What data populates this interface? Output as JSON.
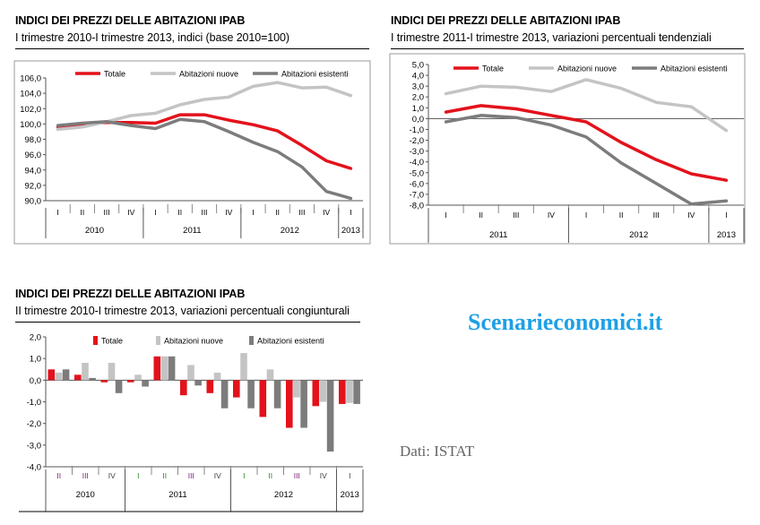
{
  "chart_data": [
    {
      "type": "line",
      "title": "INDICI DEI PREZZI DELLE ABITAZIONI IPAB",
      "subtitle": "I trimestre 2010-I trimestre 2013, indici (base 2010=100)",
      "categories": [
        "I",
        "II",
        "III",
        "IV",
        "I",
        "II",
        "III",
        "IV",
        "I",
        "II",
        "III",
        "IV",
        "I"
      ],
      "years": [
        {
          "label": "2010",
          "span": 4
        },
        {
          "label": "2011",
          "span": 4
        },
        {
          "label": "2012",
          "span": 4
        },
        {
          "label": "2013",
          "span": 1
        }
      ],
      "series": [
        {
          "name": "Totale",
          "color": "#e3121b",
          "values": [
            99.6,
            100.0,
            100.2,
            100.2,
            100.1,
            101.2,
            101.2,
            100.5,
            99.9,
            99.1,
            97.2,
            95.2,
            94.2
          ]
        },
        {
          "name": "Abitazioni nuove",
          "color": "#c4c4c4",
          "values": [
            99.3,
            99.6,
            100.3,
            101.1,
            101.4,
            102.5,
            103.2,
            103.5,
            104.9,
            105.4,
            104.7,
            104.8,
            103.7
          ]
        },
        {
          "name": "Abitazioni esistenti",
          "color": "#7c7c7c",
          "values": [
            99.8,
            100.1,
            100.3,
            99.8,
            99.4,
            100.6,
            100.3,
            99.0,
            97.6,
            96.4,
            94.4,
            91.2,
            90.3
          ]
        }
      ],
      "yticks": [
        "106,0",
        "104,0",
        "102,0",
        "100,0",
        "98,0",
        "96,0",
        "94,0",
        "92,0",
        "90,0"
      ],
      "ylim": [
        90,
        106
      ],
      "legend": "top"
    },
    {
      "type": "line",
      "title": "INDICI DEI PREZZI DELLE ABITAZIONI IPAB",
      "subtitle": "I trimestre 2011-I trimestre 2013, variazioni percentuali tendenziali",
      "categories": [
        "I",
        "II",
        "III",
        "IV",
        "I",
        "II",
        "III",
        "IV",
        "I"
      ],
      "years": [
        {
          "label": "2011",
          "span": 4
        },
        {
          "label": "2012",
          "span": 4
        },
        {
          "label": "2013",
          "span": 1
        }
      ],
      "series": [
        {
          "name": "Totale",
          "color": "#e3121b",
          "values": [
            0.6,
            1.2,
            0.9,
            0.3,
            -0.3,
            -2.2,
            -3.8,
            -5.1,
            -5.7
          ]
        },
        {
          "name": "Abitazioni nuove",
          "color": "#c4c4c4",
          "values": [
            2.3,
            3.0,
            2.9,
            2.5,
            3.6,
            2.8,
            1.5,
            1.1,
            -1.1
          ]
        },
        {
          "name": "Abitazioni esistenti",
          "color": "#7c7c7c",
          "values": [
            -0.3,
            0.3,
            0.1,
            -0.6,
            -1.7,
            -4.1,
            -6.0,
            -7.9,
            -7.6
          ]
        }
      ],
      "yticks": [
        "5,0",
        "4,0",
        "3,0",
        "2,0",
        "1,0",
        "0,0",
        "-1,0",
        "-2,0",
        "-3,0",
        "-4,0",
        "-5,0",
        "-6,0",
        "-7,0",
        "-8,0"
      ],
      "ylim": [
        -8,
        5
      ],
      "legend": "top"
    },
    {
      "type": "bar",
      "title": "INDICI DEI PREZZI DELLE ABITAZIONI IPAB",
      "subtitle": "II trimestre 2010-I trimestre 2013, variazioni percentuali congiunturali",
      "categories": [
        "II",
        "III",
        "IV",
        "I",
        "II",
        "III",
        "IV",
        "I",
        "II",
        "III",
        "IV",
        "I"
      ],
      "years": [
        {
          "label": "2010",
          "span": 3
        },
        {
          "label": "2011",
          "span": 4
        },
        {
          "label": "2012",
          "span": 4
        },
        {
          "label": "2013",
          "span": 1
        }
      ],
      "series": [
        {
          "name": "Totale",
          "color": "#e3121b",
          "values": [
            0.5,
            0.25,
            -0.1,
            -0.1,
            1.1,
            -0.7,
            -0.6,
            -0.8,
            -1.7,
            -2.2,
            -1.2,
            -1.1
          ]
        },
        {
          "name": "Abitazioni nuove",
          "color": "#c4c4c4",
          "values": [
            0.35,
            0.8,
            0.8,
            0.25,
            1.1,
            0.7,
            0.35,
            1.25,
            0.5,
            -0.8,
            -1.0,
            -1.05
          ]
        },
        {
          "name": "Abitazioni esistenti",
          "color": "#7c7c7c",
          "values": [
            0.5,
            0.1,
            -0.6,
            -0.3,
            1.1,
            -0.25,
            -1.3,
            -1.3,
            -1.3,
            -2.2,
            -3.3,
            -1.1
          ]
        }
      ],
      "yticks": [
        "2,0",
        "1,0",
        "0,0",
        "-1,0",
        "-2,0",
        "-3,0",
        "-4,0"
      ],
      "ylim": [
        -4,
        2
      ],
      "legend": "top"
    }
  ],
  "watermark": {
    "text": "Scenarieconomici.it",
    "color": "#1ea0e6"
  },
  "source": "Dati: ISTAT"
}
